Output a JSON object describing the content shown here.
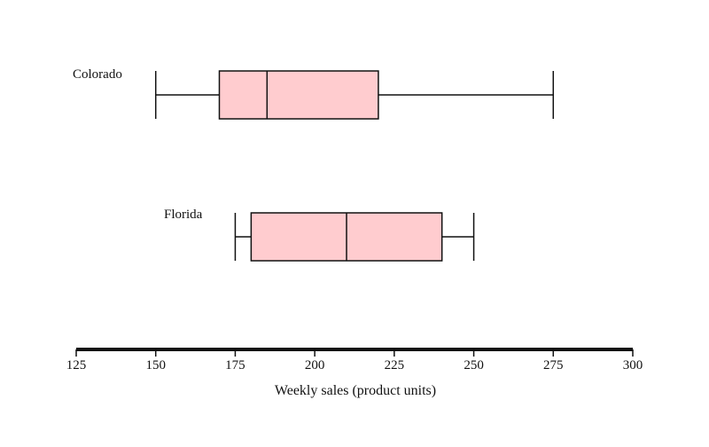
{
  "chart_data": {
    "type": "boxplot",
    "orientation": "horizontal",
    "xlabel": "Weekly sales (product units)",
    "xlim": [
      125,
      300
    ],
    "xticks": [
      125,
      150,
      175,
      200,
      225,
      250,
      275,
      300
    ],
    "grid": false,
    "colors": {
      "box_fill": "#ffcccf",
      "stroke": "#111111"
    },
    "series": [
      {
        "name": "Colorado",
        "min": 150,
        "q1": 170,
        "median": 185,
        "q3": 220,
        "max": 275
      },
      {
        "name": "Florida",
        "min": 175,
        "q1": 180,
        "median": 210,
        "q3": 240,
        "max": 250
      }
    ]
  }
}
